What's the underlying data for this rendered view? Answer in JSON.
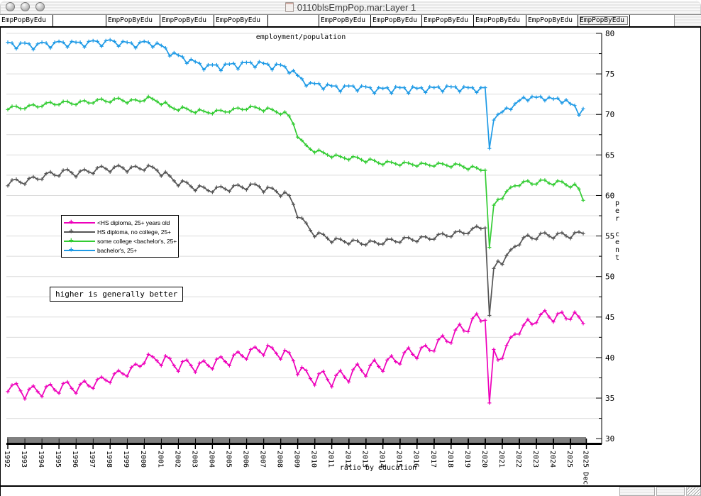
{
  "window": {
    "title": "0110blsEmpPop.mar:Layer 1"
  },
  "tabbar": {
    "selected_index": 11,
    "cells": [
      {
        "label": "EmpPopByEdu"
      },
      {
        "label": ""
      },
      {
        "label": "EmpPopByEdu"
      },
      {
        "label": "EmpPopByEdu"
      },
      {
        "label": "EmpPopByEdu"
      },
      {
        "label": ""
      },
      {
        "label": "EmpPopByEdu"
      },
      {
        "label": "EmpPopByEdu"
      },
      {
        "label": "EmpPopByEdu"
      },
      {
        "label": "EmpPopByEdu"
      },
      {
        "label": "EmpPopByEdu"
      },
      {
        "label": "EmpPopByEdu"
      }
    ]
  },
  "chart_data": {
    "type": "line",
    "title": "employment/population",
    "xlabel": "ratio by education",
    "ylabel": "per cent",
    "annotation": "higher is generally better",
    "ylim": [
      30,
      80
    ],
    "y_major_ticks": [
      30,
      35,
      40,
      45,
      50,
      55,
      60,
      65,
      70,
      75,
      80
    ],
    "y_minor_step": 2.5,
    "grid": "horizontal gridlines every 2.5",
    "x_start_year": 1992,
    "points_per_year": 4,
    "x_ticks": [
      1992,
      1993,
      1994,
      1995,
      1996,
      1997,
      1998,
      1999,
      2000,
      2001,
      2002,
      2003,
      2004,
      2005,
      2006,
      2007,
      2008,
      2009,
      2010,
      2011,
      2012,
      2013,
      2014,
      2015,
      2016,
      2017,
      2018,
      2019,
      2020,
      2021,
      2022,
      2023,
      2024,
      2025
    ],
    "x_end_tick_label": "2025 Dec",
    "legend_position": "middle-left",
    "series": [
      {
        "name": "<HS diploma, 25+ years old",
        "color": "#EE00BB",
        "values": [
          35.8,
          36.6,
          36.8,
          35.9,
          34.9,
          36.1,
          36.5,
          35.8,
          35.2,
          36.4,
          36.7,
          36.0,
          35.6,
          36.8,
          37.0,
          36.2,
          35.6,
          36.7,
          37.1,
          36.5,
          36.2,
          37.3,
          37.6,
          37.2,
          36.9,
          38.0,
          38.4,
          38.0,
          37.7,
          38.8,
          39.2,
          38.9,
          39.3,
          40.4,
          40.1,
          39.6,
          39.0,
          40.2,
          39.9,
          39.0,
          38.3,
          39.5,
          39.7,
          39.0,
          38.2,
          39.3,
          39.6,
          39.0,
          38.6,
          39.8,
          40.1,
          39.5,
          39.0,
          40.3,
          40.7,
          40.2,
          39.8,
          41.0,
          41.3,
          40.8,
          40.3,
          41.5,
          41.2,
          40.5,
          39.8,
          40.9,
          40.6,
          39.6,
          37.9,
          38.8,
          38.4,
          37.4,
          36.6,
          38.0,
          38.3,
          37.3,
          36.4,
          37.8,
          38.4,
          37.6,
          37.0,
          38.5,
          39.2,
          38.4,
          37.7,
          39.0,
          39.7,
          38.9,
          38.3,
          39.7,
          40.2,
          39.5,
          39.2,
          40.6,
          41.2,
          40.4,
          39.9,
          41.2,
          41.5,
          40.9,
          40.8,
          42.2,
          42.7,
          42.0,
          41.8,
          43.4,
          44.1,
          43.3,
          43.2,
          44.8,
          45.4,
          44.5,
          44.6,
          34.4,
          41.0,
          39.7,
          39.9,
          41.5,
          42.5,
          42.9,
          42.9,
          44.0,
          44.7,
          44.1,
          44.3,
          45.3,
          45.8,
          45.0,
          44.4,
          45.4,
          45.6,
          44.8,
          44.7,
          45.6,
          45.0,
          44.2
        ]
      },
      {
        "name": "HS diploma, no college, 25+",
        "color": "#555555",
        "values": [
          61.2,
          61.9,
          62.0,
          61.6,
          61.4,
          62.1,
          62.3,
          62.0,
          62.0,
          62.7,
          62.9,
          62.5,
          62.4,
          63.1,
          63.2,
          62.8,
          62.3,
          63.0,
          63.2,
          62.9,
          62.7,
          63.4,
          63.6,
          63.3,
          62.9,
          63.5,
          63.7,
          63.4,
          62.9,
          63.5,
          63.6,
          63.3,
          63.1,
          63.7,
          63.5,
          63.1,
          62.4,
          62.9,
          62.4,
          61.8,
          61.2,
          61.8,
          61.6,
          61.1,
          60.6,
          61.2,
          61.0,
          60.6,
          60.4,
          61.0,
          61.1,
          60.8,
          60.5,
          61.2,
          61.3,
          61.0,
          60.7,
          61.4,
          61.4,
          61.1,
          60.4,
          61.0,
          60.9,
          60.5,
          59.9,
          60.4,
          60.0,
          58.9,
          57.3,
          57.2,
          56.6,
          55.7,
          54.9,
          55.4,
          55.2,
          54.7,
          54.2,
          54.7,
          54.6,
          54.3,
          54.0,
          54.5,
          54.4,
          54.0,
          53.9,
          54.4,
          54.3,
          54.0,
          54.0,
          54.6,
          54.6,
          54.3,
          54.2,
          54.8,
          54.8,
          54.5,
          54.3,
          54.9,
          54.9,
          54.6,
          54.6,
          55.2,
          55.3,
          55.0,
          54.9,
          55.5,
          55.6,
          55.3,
          55.3,
          55.9,
          56.2,
          55.9,
          56.0,
          45.2,
          51.0,
          51.9,
          51.5,
          52.6,
          53.3,
          53.7,
          53.9,
          54.8,
          55.1,
          54.7,
          54.6,
          55.3,
          55.4,
          55.0,
          54.7,
          55.3,
          55.4,
          55.0,
          54.7,
          55.4,
          55.5,
          55.3
        ]
      },
      {
        "name": "some college <bachelor's, 25+",
        "color": "#33CC33",
        "values": [
          70.6,
          71.0,
          71.0,
          70.7,
          70.7,
          71.1,
          71.2,
          70.9,
          71.0,
          71.4,
          71.5,
          71.2,
          71.2,
          71.6,
          71.6,
          71.3,
          71.2,
          71.6,
          71.7,
          71.4,
          71.4,
          71.8,
          71.9,
          71.6,
          71.5,
          71.9,
          72.0,
          71.7,
          71.4,
          71.8,
          71.8,
          71.6,
          71.7,
          72.2,
          71.9,
          71.6,
          71.2,
          71.5,
          71.0,
          70.7,
          70.5,
          70.9,
          70.7,
          70.4,
          70.2,
          70.6,
          70.4,
          70.2,
          70.1,
          70.5,
          70.5,
          70.3,
          70.3,
          70.7,
          70.8,
          70.6,
          70.6,
          71.0,
          70.9,
          70.7,
          70.4,
          70.8,
          70.6,
          70.3,
          70.0,
          70.3,
          69.8,
          68.8,
          67.2,
          66.8,
          66.2,
          65.7,
          65.3,
          65.6,
          65.3,
          65.0,
          64.7,
          65.0,
          64.8,
          64.6,
          64.4,
          64.8,
          64.7,
          64.4,
          64.1,
          64.5,
          64.3,
          64.0,
          63.8,
          64.2,
          64.1,
          63.9,
          63.7,
          64.1,
          64.0,
          63.8,
          63.6,
          64.0,
          63.9,
          63.7,
          63.6,
          64.0,
          63.9,
          63.7,
          63.5,
          63.9,
          63.8,
          63.5,
          63.2,
          63.6,
          63.4,
          63.1,
          63.1,
          53.6,
          58.8,
          59.5,
          59.6,
          60.5,
          61.0,
          61.2,
          61.2,
          61.7,
          61.8,
          61.4,
          61.4,
          61.9,
          61.9,
          61.5,
          61.3,
          61.8,
          61.7,
          61.3,
          61.0,
          61.4,
          60.8,
          59.4
        ]
      },
      {
        "name": "bachelor's, 25+",
        "color": "#1E9AE6",
        "values": [
          78.9,
          78.8,
          78.1,
          78.8,
          78.8,
          78.7,
          78.0,
          78.7,
          78.9,
          78.8,
          78.2,
          78.9,
          79.0,
          78.9,
          78.3,
          79.0,
          78.9,
          78.9,
          78.3,
          79.0,
          79.1,
          79.0,
          78.4,
          79.1,
          79.2,
          79.0,
          78.4,
          79.0,
          78.9,
          78.8,
          78.2,
          78.9,
          79.0,
          78.9,
          78.3,
          78.8,
          78.5,
          78.2,
          77.2,
          77.6,
          77.3,
          77.1,
          76.3,
          76.8,
          76.5,
          76.3,
          75.5,
          76.1,
          76.1,
          76.1,
          75.4,
          76.2,
          76.2,
          76.3,
          75.6,
          76.4,
          76.4,
          76.4,
          75.8,
          76.5,
          76.3,
          76.2,
          75.5,
          76.2,
          76.1,
          75.9,
          75.1,
          75.4,
          74.8,
          74.4,
          73.5,
          73.9,
          73.8,
          73.8,
          73.1,
          73.7,
          73.5,
          73.5,
          72.8,
          73.5,
          73.5,
          73.5,
          72.9,
          73.5,
          73.4,
          73.3,
          72.6,
          73.3,
          73.2,
          73.3,
          72.6,
          73.4,
          73.3,
          73.3,
          72.6,
          73.4,
          73.2,
          73.3,
          72.7,
          73.4,
          73.3,
          73.4,
          72.8,
          73.5,
          73.4,
          73.4,
          72.8,
          73.4,
          73.3,
          73.3,
          72.7,
          73.3,
          73.3,
          65.8,
          69.3,
          70.0,
          70.3,
          70.8,
          70.6,
          71.3,
          71.7,
          72.1,
          71.7,
          72.2,
          72.1,
          72.2,
          71.7,
          72.1,
          71.9,
          72.0,
          71.4,
          71.8,
          71.3,
          71.1,
          69.9,
          70.7
        ]
      }
    ]
  }
}
